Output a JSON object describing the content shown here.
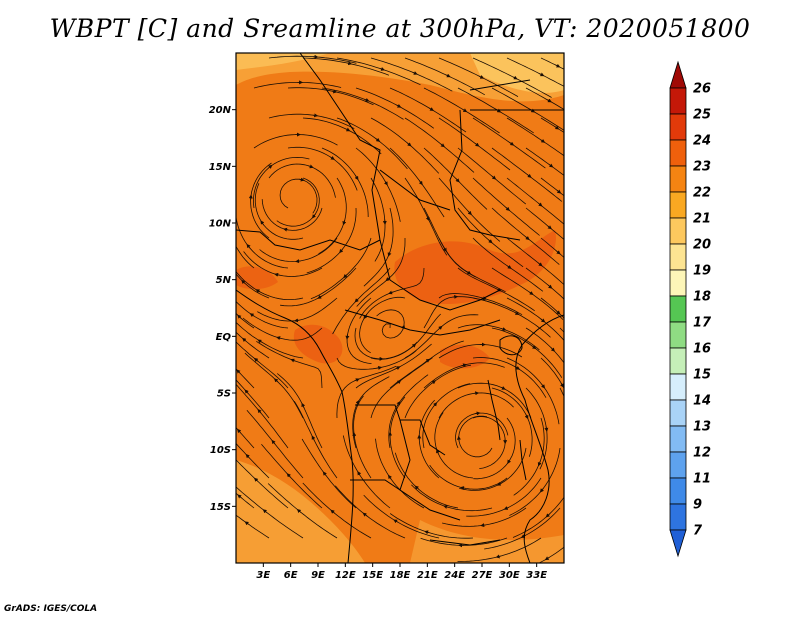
{
  "title": "WBPT [C] and Sreamline at 300hPa, VT: 2020051800",
  "credit": "GrADS: IGES/COLA",
  "map": {
    "lon_range": [
      0,
      36
    ],
    "lat_range": [
      -20,
      25
    ],
    "lon_ticks": [
      "3E",
      "6E",
      "9E",
      "12E",
      "15E",
      "18E",
      "21E",
      "24E",
      "27E",
      "30E",
      "33E"
    ],
    "lon_values": [
      3,
      6,
      9,
      12,
      15,
      18,
      21,
      24,
      27,
      30,
      33
    ],
    "lat_ticks": [
      "20N",
      "15N",
      "10N",
      "5N",
      "EQ",
      "5S",
      "10S",
      "15S"
    ],
    "lat_values": [
      20,
      15,
      10,
      5,
      0,
      -5,
      -10,
      -15
    ]
  },
  "colorbar": {
    "labels": [
      "7",
      "9",
      "11",
      "12",
      "13",
      "14",
      "15",
      "16",
      "17",
      "18",
      "19",
      "20",
      "21",
      "22",
      "23",
      "24",
      "25",
      "26"
    ],
    "colors": [
      "#1f5fd6",
      "#2e74e0",
      "#3f8ae8",
      "#5ea2ee",
      "#82bbf3",
      "#a9d3f7",
      "#d6eefc",
      "#c5efb8",
      "#8fdc83",
      "#55c653",
      "#fdf6b8",
      "#fde492",
      "#fdc85e",
      "#f9a822",
      "#f58412",
      "#ef600c",
      "#e23a0a",
      "#c41808",
      "#a00a06"
    ]
  },
  "colors": {
    "field_main": "#f07b16",
    "field_warm": "#eb5e12",
    "field_cool": "#f7a43a",
    "field_cooler": "#fbc35c",
    "streamline": "#1a0e05",
    "border": "#000000"
  }
}
